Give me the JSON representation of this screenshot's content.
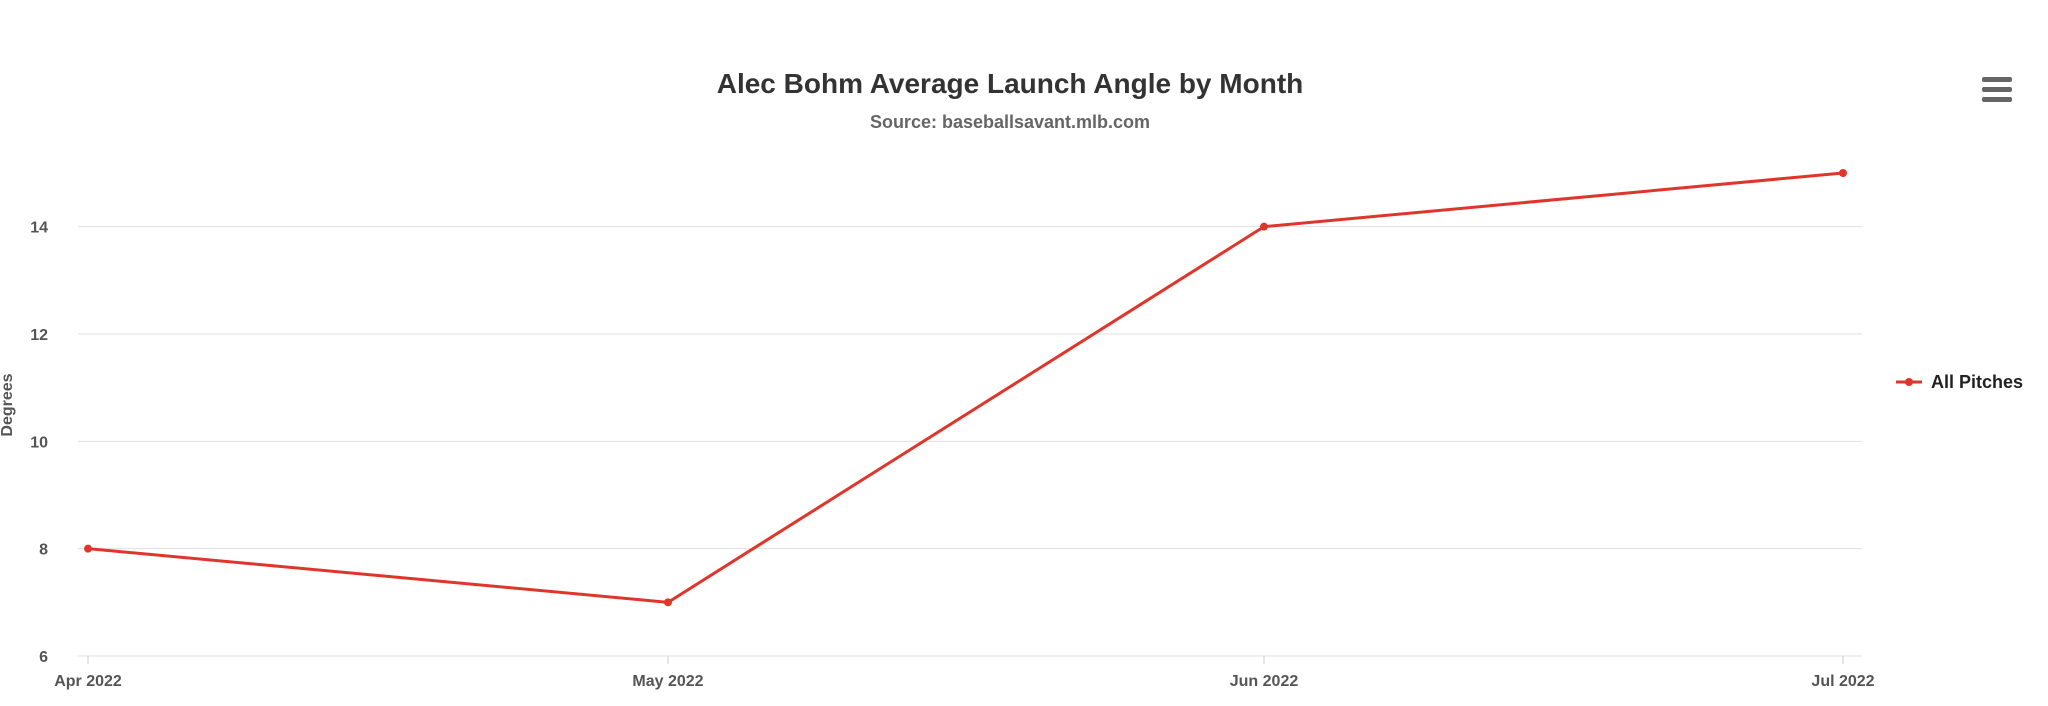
{
  "chart_data": {
    "type": "line",
    "title": "Alec Bohm Average Launch Angle by Month",
    "subtitle": "Source: baseballsavant.mlb.com",
    "xlabel": "",
    "ylabel": "Degrees",
    "categories": [
      "Apr 2022",
      "May 2022",
      "Jun 2022",
      "Jul 2022"
    ],
    "series": [
      {
        "name": "All Pitches",
        "values": [
          8,
          7,
          14,
          15
        ],
        "color": "#e0352b"
      }
    ],
    "ylim": [
      6,
      15
    ],
    "yticks": [
      6,
      8,
      10,
      12,
      14
    ],
    "grid": true,
    "legend_position": "right"
  },
  "menu": {
    "icon": "hamburger-menu-icon"
  }
}
